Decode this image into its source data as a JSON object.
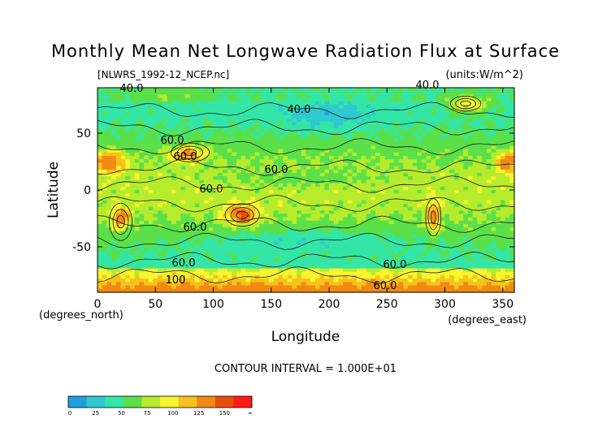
{
  "chart_data": {
    "type": "heatmap",
    "title": "Monthly Mean Net Longwave Radiation Flux at Surface",
    "file_label": "[NLWRS_1992-12_NCEP.nc]",
    "units_label": "(units:W/m^2)",
    "xlabel": "Longitude",
    "ylabel": "Latitude",
    "x_unit_label": "(degrees_east)",
    "y_unit_label": "(degrees_north)",
    "xlim": [
      0,
      360
    ],
    "ylim": [
      -90,
      90
    ],
    "x_ticks": [
      0,
      50,
      100,
      150,
      200,
      250,
      300,
      350
    ],
    "y_ticks": [
      50,
      0,
      -50
    ],
    "contour_interval_text": "CONTOUR INTERVAL = 1.000E+01",
    "contour_labels": [
      "40.0",
      "40.0",
      "40.0",
      "60.0",
      "60.0",
      "60.0",
      "60.0",
      "60.0",
      "60.0",
      "60.0",
      "100",
      "60.0"
    ],
    "colorbar": {
      "tick_labels": [
        "0",
        "25",
        "50",
        "75",
        "100",
        "125",
        "150",
        "∞"
      ],
      "colors": [
        "#1f9fe0",
        "#2fc9d0",
        "#33e6a8",
        "#5be04a",
        "#b6ec2c",
        "#f6f52e",
        "#f5c21c",
        "#ef8a14",
        "#ea4c0c",
        "#ff1a1a"
      ]
    }
  }
}
